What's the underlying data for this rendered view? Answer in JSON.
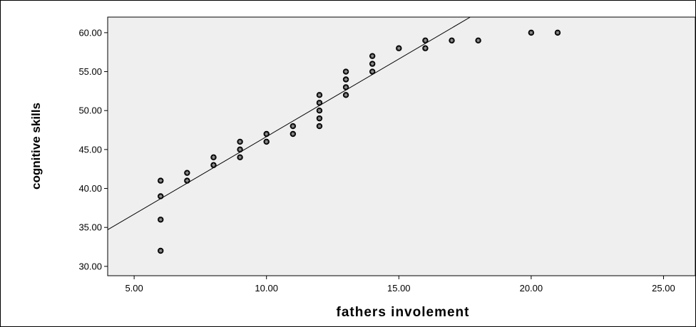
{
  "chart_data": {
    "type": "scatter",
    "title": "",
    "xlabel": "fathers  involement",
    "ylabel": "cognitive skills",
    "xlim": [
      4.0,
      26.2
    ],
    "ylim": [
      28.8,
      62.0
    ],
    "xticks": [
      "5.00",
      "10.00",
      "15.00",
      "20.00",
      "25.00"
    ],
    "yticks": [
      "30.00",
      "35.00",
      "40.00",
      "45.00",
      "50.00",
      "55.00",
      "60.00"
    ],
    "grid": false,
    "legend": "none",
    "marker": "asterisk-circle",
    "colors": {
      "plot_bg": "#efefef",
      "marker": "#000000",
      "line": "#000000"
    },
    "fit_line": {
      "type": "linear",
      "from": [
        4.0,
        34.7
      ],
      "to": [
        17.7,
        62.0
      ]
    },
    "points": [
      {
        "x": 6,
        "y": 32
      },
      {
        "x": 6,
        "y": 36
      },
      {
        "x": 6,
        "y": 39
      },
      {
        "x": 6,
        "y": 41
      },
      {
        "x": 7,
        "y": 41
      },
      {
        "x": 7,
        "y": 42
      },
      {
        "x": 8,
        "y": 43
      },
      {
        "x": 8,
        "y": 44
      },
      {
        "x": 9,
        "y": 44
      },
      {
        "x": 9,
        "y": 45
      },
      {
        "x": 9,
        "y": 46
      },
      {
        "x": 10,
        "y": 46
      },
      {
        "x": 10,
        "y": 47
      },
      {
        "x": 11,
        "y": 47
      },
      {
        "x": 11,
        "y": 48
      },
      {
        "x": 12,
        "y": 48
      },
      {
        "x": 12,
        "y": 49
      },
      {
        "x": 12,
        "y": 50
      },
      {
        "x": 12,
        "y": 51
      },
      {
        "x": 12,
        "y": 52
      },
      {
        "x": 13,
        "y": 52
      },
      {
        "x": 13,
        "y": 53
      },
      {
        "x": 13,
        "y": 54
      },
      {
        "x": 13,
        "y": 55
      },
      {
        "x": 14,
        "y": 55
      },
      {
        "x": 14,
        "y": 56
      },
      {
        "x": 14,
        "y": 57
      },
      {
        "x": 15,
        "y": 58
      },
      {
        "x": 16,
        "y": 58
      },
      {
        "x": 16,
        "y": 59
      },
      {
        "x": 17,
        "y": 59
      },
      {
        "x": 18,
        "y": 59
      },
      {
        "x": 20,
        "y": 60
      },
      {
        "x": 21,
        "y": 60
      }
    ]
  }
}
